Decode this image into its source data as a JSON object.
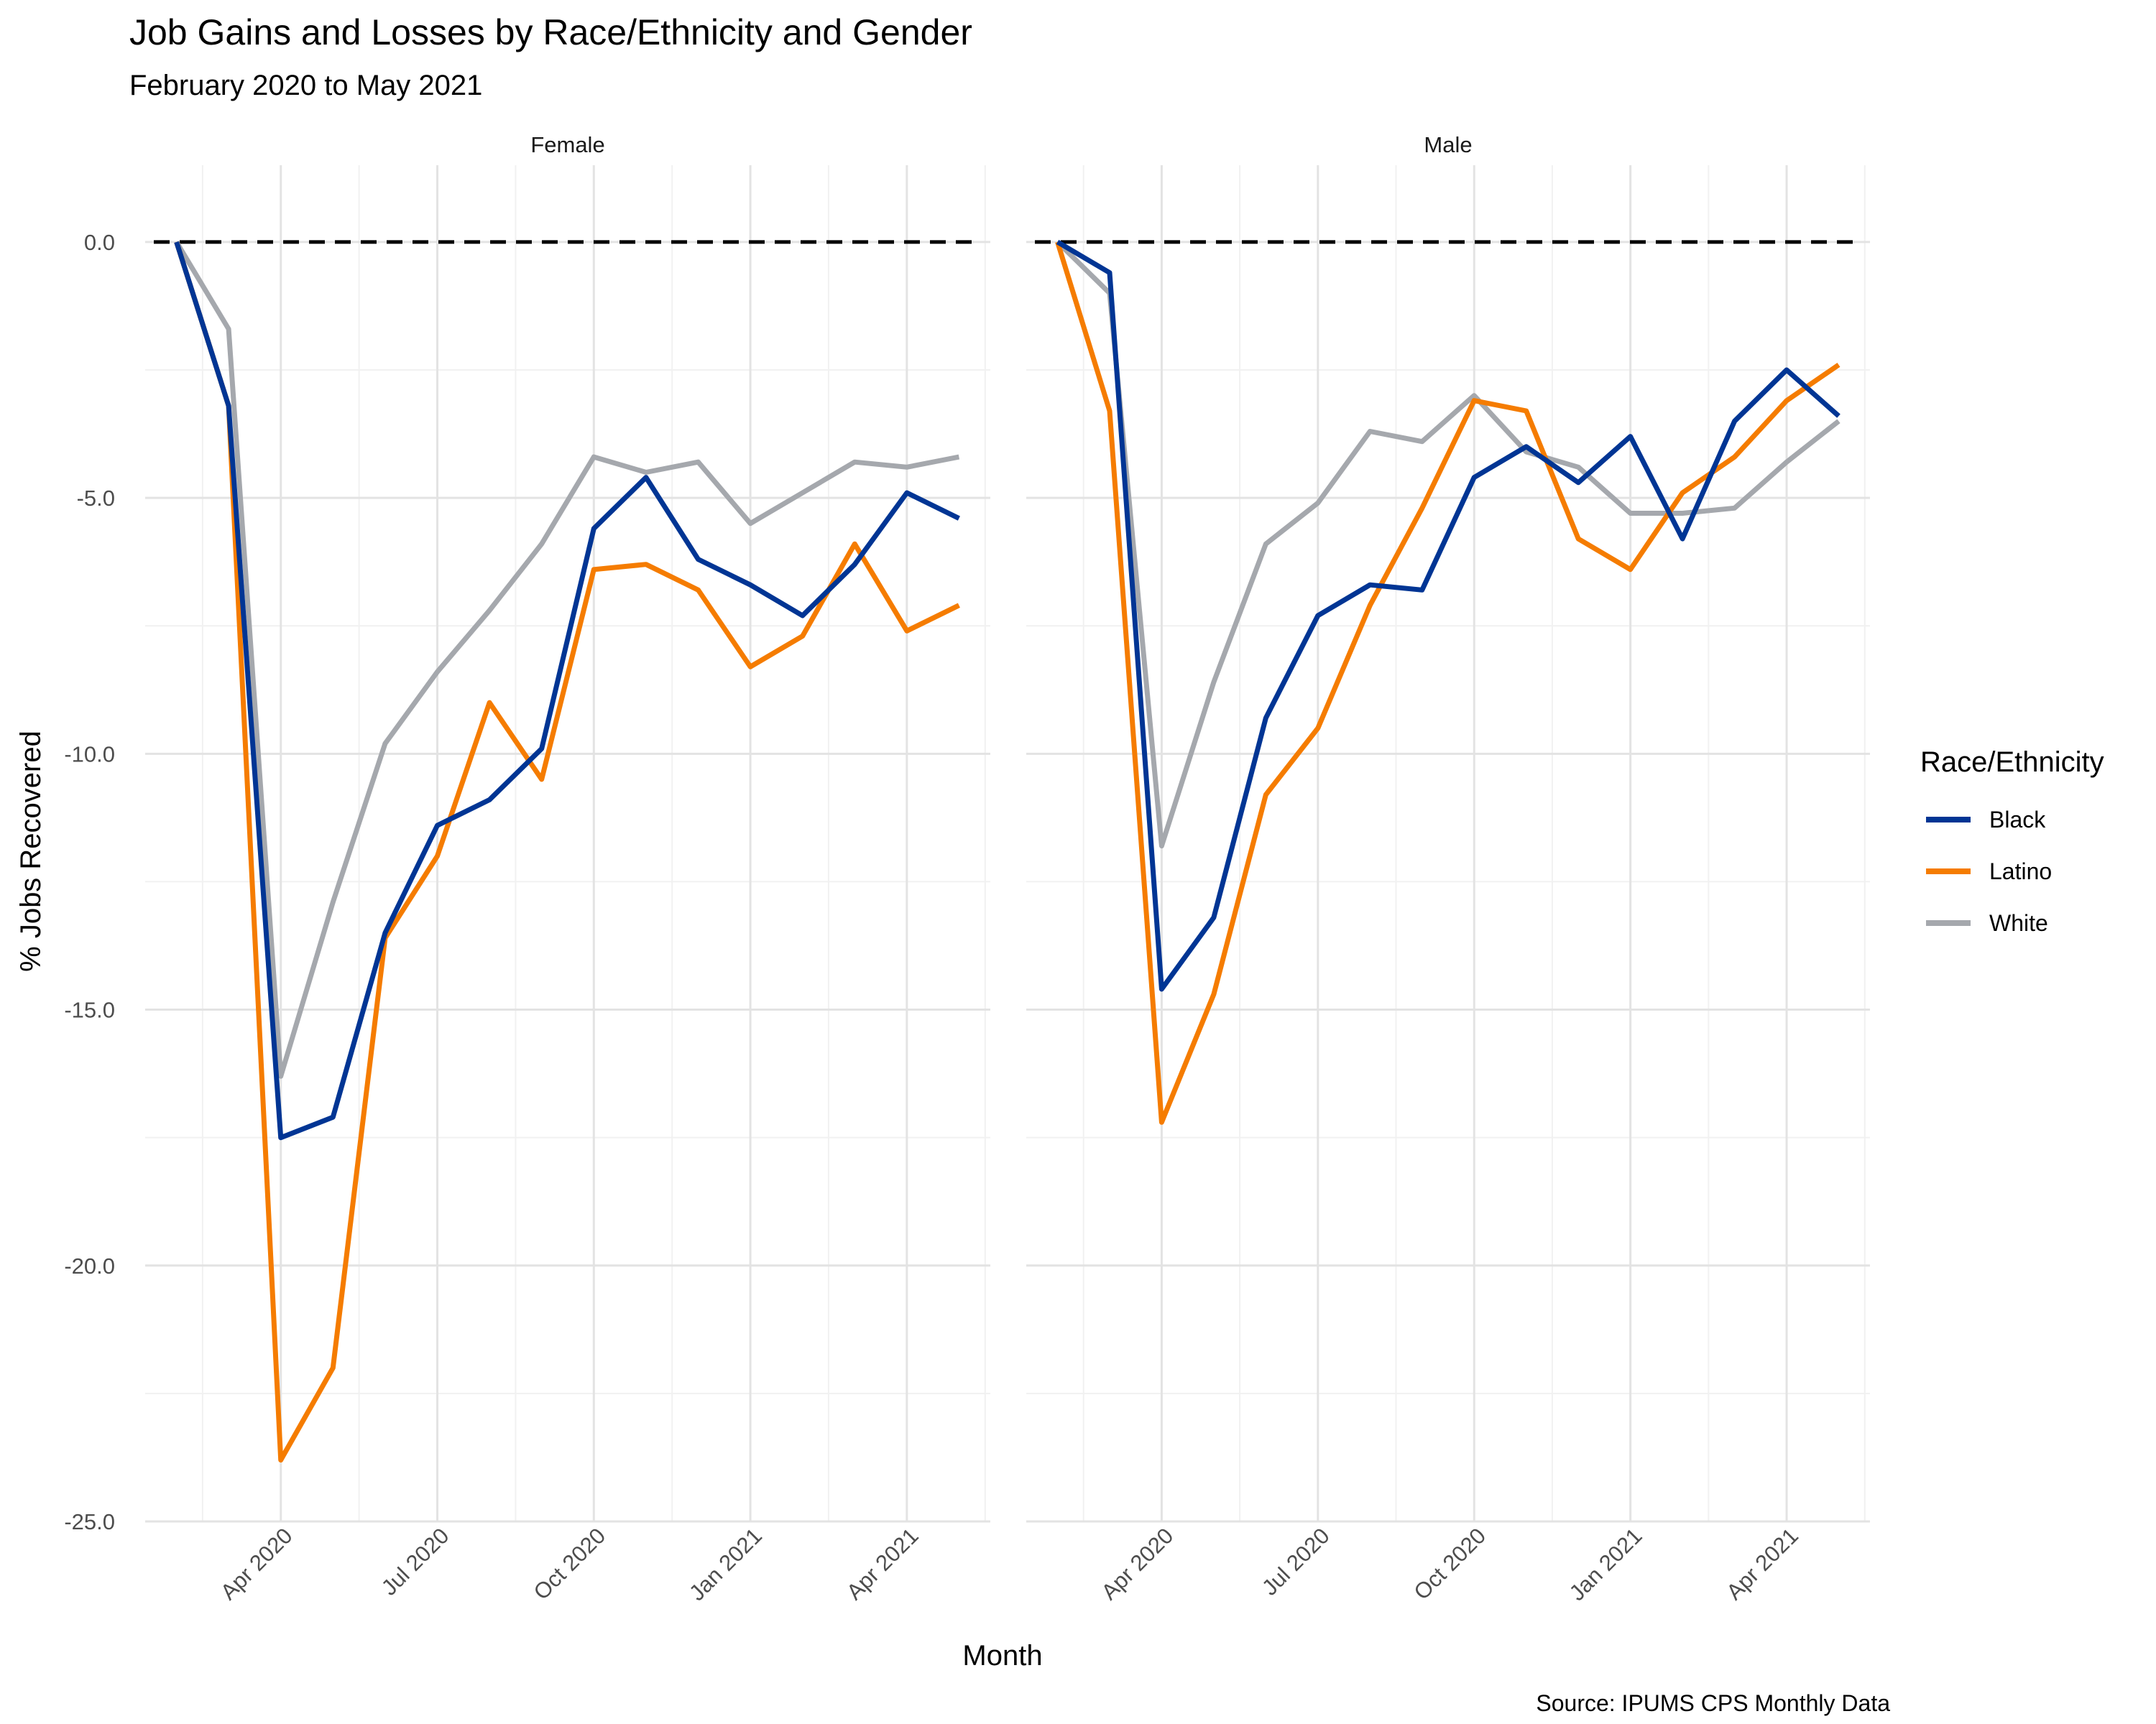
{
  "chart_data": {
    "type": "line",
    "title": "Job Gains and Losses by Race/Ethnicity and Gender",
    "subtitle": "February 2020 to May 2021",
    "xlabel": "Month",
    "ylabel": "% Jobs Recovered",
    "caption": "Source: IPUMS CPS Monthly Data",
    "legend_title": "Race/Ethnicity",
    "legend_position": "right",
    "grid": true,
    "reference_line": {
      "y": 0.0,
      "style": "dashed"
    },
    "x": [
      "2020-02",
      "2020-03",
      "2020-04",
      "2020-05",
      "2020-06",
      "2020-07",
      "2020-08",
      "2020-09",
      "2020-10",
      "2020-11",
      "2020-12",
      "2021-01",
      "2021-02",
      "2021-03",
      "2021-04",
      "2021-05"
    ],
    "x_tick_labels": [
      "Apr 2020",
      "Jul 2020",
      "Oct 2020",
      "Jan 2021",
      "Apr 2021"
    ],
    "y_tick_labels": [
      "0.0",
      "-5.0",
      "-10.0",
      "-15.0",
      "-20.0",
      "-25.0"
    ],
    "ylim": [
      -25,
      1.5
    ],
    "colors": {
      "Black": "#003594",
      "Latino": "#f57c00",
      "White": "#a5a8ad"
    },
    "panels": [
      {
        "name": "Female",
        "series": [
          {
            "name": "Black",
            "values": [
              0.0,
              -3.2,
              -17.5,
              -17.1,
              -13.5,
              -11.4,
              -10.9,
              -9.9,
              -5.6,
              -4.6,
              -6.2,
              -6.7,
              -7.3,
              -6.3,
              -4.9,
              -5.4
            ]
          },
          {
            "name": "Latino",
            "values": [
              0.0,
              -3.2,
              -23.8,
              -22.0,
              -13.6,
              -12.0,
              -9.0,
              -10.5,
              -6.4,
              -6.3,
              -6.8,
              -8.3,
              -7.7,
              -5.9,
              -7.6,
              -7.1
            ]
          },
          {
            "name": "White",
            "values": [
              0.0,
              -1.7,
              -16.3,
              -12.9,
              -9.8,
              -8.4,
              -7.2,
              -5.9,
              -4.2,
              -4.5,
              -4.3,
              -5.5,
              -4.9,
              -4.3,
              -4.4,
              -4.2
            ]
          }
        ]
      },
      {
        "name": "Male",
        "series": [
          {
            "name": "Black",
            "values": [
              0.0,
              -0.6,
              -14.6,
              -13.2,
              -9.3,
              -7.3,
              -6.7,
              -6.8,
              -4.6,
              -4.0,
              -4.7,
              -3.8,
              -5.8,
              -3.5,
              -2.5,
              -3.4
            ]
          },
          {
            "name": "Latino",
            "values": [
              0.0,
              -3.3,
              -17.2,
              -14.7,
              -10.8,
              -9.5,
              -7.1,
              -5.2,
              -3.1,
              -3.3,
              -5.8,
              -6.4,
              -4.9,
              -4.2,
              -3.1,
              -2.4
            ]
          },
          {
            "name": "White",
            "values": [
              0.0,
              -1.0,
              -11.8,
              -8.6,
              -5.9,
              -5.1,
              -3.7,
              -3.9,
              -3.0,
              -4.1,
              -4.4,
              -5.3,
              -5.3,
              -5.2,
              -4.3,
              -3.5
            ]
          }
        ]
      }
    ]
  }
}
